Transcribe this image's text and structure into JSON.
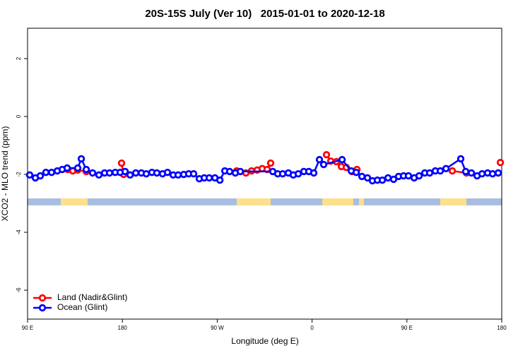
{
  "chart_data": {
    "type": "line",
    "title": "20S-15S July (Ver 10)   2015-01-01 to 2020-12-18",
    "xlabel": "Longitude (deg E)",
    "ylabel": "XCO2 - MLO trend (ppm)",
    "xlim": [
      90,
      540
    ],
    "ylim": [
      -7,
      3.05
    ],
    "xticks": [
      {
        "value": 90,
        "label": "90 E"
      },
      {
        "value": 180,
        "label": "180"
      },
      {
        "value": 270,
        "label": "90 W"
      },
      {
        "value": 360,
        "label": "0"
      },
      {
        "value": 450,
        "label": "90 E"
      },
      {
        "value": 540,
        "label": "180"
      }
    ],
    "yticks": [
      2,
      0,
      -2,
      -4,
      -6
    ],
    "legend": "bottom-left",
    "band": {
      "ylim": [
        -3.07,
        -2.83
      ],
      "ocean_color": "#a9bde0",
      "land_color": "#fde08a",
      "land": [
        [
          121.5,
          147
        ],
        [
          288.5,
          320.7
        ],
        [
          369.7,
          399.2
        ],
        [
          404.5,
          409.2
        ],
        [
          481.7,
          506.5
        ]
      ]
    },
    "series": [
      {
        "name": "Land (Nadir&Glint)",
        "color": "#ff0000",
        "x": [
          128.2,
          132.9,
          137.6,
          145.7,
          null,
          179.2,
          181.2,
          null,
          288.5,
          297.2,
          302.6,
          307.9,
          312.7,
          317.4,
          320.7,
          null,
          373.7,
          377.7,
          383.1,
          387.8,
          392.5,
          397.8,
          402.6,
          null,
          493.1,
          506.5,
          null,
          538.7
        ],
        "values": [
          -1.83,
          -1.88,
          -1.85,
          -1.9,
          null,
          -1.61,
          -2.0,
          null,
          -1.88,
          -1.95,
          -1.88,
          -1.85,
          -1.8,
          -1.83,
          -1.61,
          null,
          -1.32,
          -1.54,
          -1.56,
          -1.73,
          -1.76,
          -1.9,
          -1.83,
          null,
          -1.88,
          -1.95,
          null,
          -1.59
        ]
      },
      {
        "name": "Ocean (Glint)",
        "color": "#0000ff",
        "x": [
          92.0,
          97.4,
          102.1,
          107.4,
          112.8,
          118.2,
          122.9,
          127.6,
          137.6,
          141.0,
          145.7,
          151.7,
          157.7,
          163.1,
          167.8,
          173.2,
          177.9,
          182.6,
          187.3,
          192.7,
          198.0,
          202.7,
          208.0,
          212.7,
          218.1,
          222.8,
          228.2,
          232.9,
          238.2,
          242.9,
          247.6,
          253.0,
          257.7,
          262.4,
          267.8,
          272.5,
          277.2,
          281.8,
          287.2,
          291.9,
          322.7,
          327.4,
          332.1,
          337.5,
          342.2,
          346.9,
          352.2,
          356.9,
          361.6,
          367.0,
          371.0,
          388.5,
          397.2,
          401.9,
          407.3,
          412.6,
          417.3,
          422.0,
          426.7,
          432.1,
          437.4,
          442.1,
          446.8,
          451.5,
          456.9,
          461.6,
          467.0,
          471.6,
          477.0,
          481.7,
          487.1,
          501.1,
          505.8,
          511.2,
          516.6,
          521.3,
          526.6,
          531.3,
          536.7
        ],
        "values": [
          -2.02,
          -2.12,
          -2.05,
          -1.93,
          -1.93,
          -1.88,
          -1.83,
          -1.78,
          -1.78,
          -1.46,
          -1.83,
          -1.95,
          -2.02,
          -1.95,
          -1.95,
          -1.93,
          -1.93,
          -1.9,
          -2.02,
          -1.95,
          -1.95,
          -1.98,
          -1.93,
          -1.95,
          -1.98,
          -1.93,
          -2.02,
          -2.02,
          -2.0,
          -1.98,
          -1.98,
          -2.15,
          -2.12,
          -2.12,
          -2.12,
          -2.2,
          -1.88,
          -1.9,
          -1.95,
          -1.9,
          -1.9,
          -1.98,
          -1.98,
          -1.95,
          -2.02,
          -1.98,
          -1.9,
          -1.9,
          -1.95,
          -1.49,
          -1.66,
          -1.49,
          -1.88,
          -1.93,
          -2.07,
          -2.12,
          -2.22,
          -2.2,
          -2.2,
          -2.12,
          -2.17,
          -2.07,
          -2.05,
          -2.05,
          -2.12,
          -2.05,
          -1.95,
          -1.95,
          -1.88,
          -1.88,
          -1.8,
          -1.46,
          -1.9,
          -1.95,
          -2.05,
          -1.98,
          -1.95,
          -1.98,
          -1.95
        ]
      }
    ]
  }
}
